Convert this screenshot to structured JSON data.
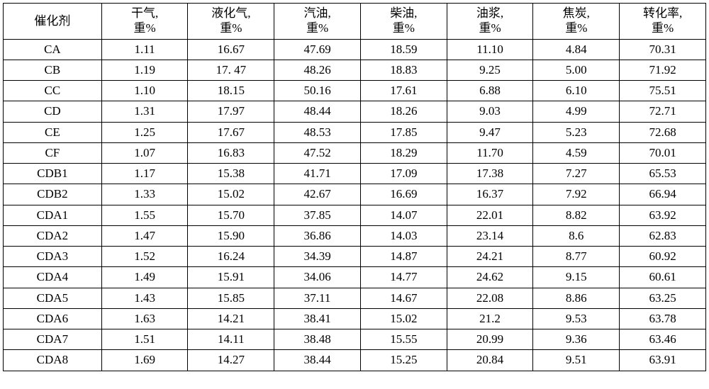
{
  "table": {
    "columns": [
      {
        "top": "催化剂",
        "bottom": ""
      },
      {
        "top": "干气,",
        "bottom": "重%"
      },
      {
        "top": "液化气,",
        "bottom": "重%"
      },
      {
        "top": "汽油,",
        "bottom": "重%"
      },
      {
        "top": "柴油,",
        "bottom": "重%"
      },
      {
        "top": "油浆,",
        "bottom": "重%"
      },
      {
        "top": "焦炭,",
        "bottom": "重%"
      },
      {
        "top": "转化率,",
        "bottom": "重%"
      }
    ],
    "rows": [
      {
        "label": "CA",
        "v": [
          "1.11",
          "16.67",
          "47.69",
          "18.59",
          "11.10",
          "4.84",
          "70.31"
        ]
      },
      {
        "label": "CB",
        "v": [
          "1.19",
          "17. 47",
          "48.26",
          "18.83",
          "9.25",
          "5.00",
          "71.92"
        ]
      },
      {
        "label": "CC",
        "v": [
          "1.10",
          "18.15",
          "50.16",
          "17.61",
          "6.88",
          "6.10",
          "75.51"
        ]
      },
      {
        "label": "CD",
        "v": [
          "1.31",
          "17.97",
          "48.44",
          "18.26",
          "9.03",
          "4.99",
          "72.71"
        ]
      },
      {
        "label": "CE",
        "v": [
          "1.25",
          "17.67",
          "48.53",
          "17.85",
          "9.47",
          "5.23",
          "72.68"
        ]
      },
      {
        "label": "CF",
        "v": [
          "1.07",
          "16.83",
          "47.52",
          "18.29",
          "11.70",
          "4.59",
          "70.01"
        ]
      },
      {
        "label": "CDB1",
        "v": [
          "1.17",
          "15.38",
          "41.71",
          "17.09",
          "17.38",
          "7.27",
          "65.53"
        ]
      },
      {
        "label": "CDB2",
        "v": [
          "1.33",
          "15.02",
          "42.67",
          "16.69",
          "16.37",
          "7.92",
          "66.94"
        ]
      },
      {
        "label": "CDA1",
        "v": [
          "1.55",
          "15.70",
          "37.85",
          "14.07",
          "22.01",
          "8.82",
          "63.92"
        ]
      },
      {
        "label": "CDA2",
        "v": [
          "1.47",
          "15.90",
          "36.86",
          "14.03",
          "23.14",
          "8.6",
          "62.83"
        ]
      },
      {
        "label": "CDA3",
        "v": [
          "1.52",
          "16.24",
          "34.39",
          "14.87",
          "24.21",
          "8.77",
          "60.92"
        ]
      },
      {
        "label": "CDA4",
        "v": [
          "1.49",
          "15.91",
          "34.06",
          "14.77",
          "24.62",
          "9.15",
          "60.61"
        ]
      },
      {
        "label": "CDA5",
        "v": [
          "1.43",
          "15.85",
          "37.11",
          "14.67",
          "22.08",
          "8.86",
          "63.25"
        ]
      },
      {
        "label": "CDA6",
        "v": [
          "1.63",
          "14.21",
          "38.41",
          "15.02",
          "21.2",
          "9.53",
          "63.78"
        ]
      },
      {
        "label": "CDA7",
        "v": [
          "1.51",
          "14.11",
          "38.48",
          "15.55",
          "20.99",
          "9.36",
          "63.46"
        ]
      },
      {
        "label": "CDA8",
        "v": [
          "1.69",
          "14.27",
          "38.44",
          "15.25",
          "20.84",
          "9.51",
          "63.91"
        ]
      }
    ],
    "style": {
      "border_color": "#000000",
      "background_color": "#ffffff",
      "text_color": "#000000",
      "font_size_pt": 12,
      "font_family": "SimSun / Times New Roman",
      "col_widths_pct": [
        14,
        12.285,
        12.285,
        12.285,
        12.285,
        12.285,
        12.285,
        12.285
      ]
    }
  }
}
